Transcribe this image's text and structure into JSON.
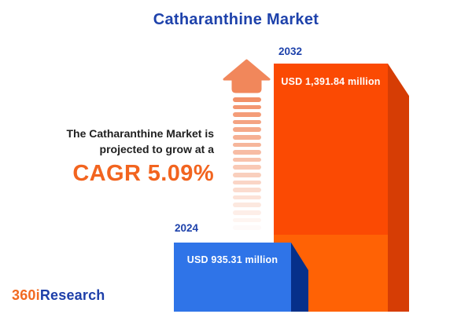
{
  "title": "Catharanthine Market",
  "growth_note": {
    "line1": "The Catharanthine Market is",
    "line2": "projected to grow at a",
    "cagr": "CAGR 5.09%"
  },
  "logo": {
    "part1": "360i",
    "part2": "Research"
  },
  "colors": {
    "title_blue": "#1E42AB",
    "accent_orange": "#F2641F",
    "bar_2032_front_top": "#FB4A03",
    "bar_2032_front_bottom": "#FF6205",
    "bar_2032_side": "#D63D05",
    "bar_2024_front": "#2F74E8",
    "bar_2024_side": "#06308A",
    "arrow_color": "#F1875B",
    "text_dark": "#1F1F1F",
    "logo_orange": "#F26A21",
    "logo_blue": "#1E3FA9",
    "label_white": "#FFFFFF"
  },
  "chart_data": {
    "type": "bar",
    "title": "Catharanthine Market",
    "categories": [
      "2024",
      "2032"
    ],
    "values": [
      935.31,
      1391.84
    ],
    "value_labels": [
      "USD 935.31 million",
      "USD 1,391.84 million"
    ],
    "unit": "USD million",
    "cagr_percent": 5.09,
    "orientation": "vertical",
    "style": "3d-bars, values rendered inside bars, year labels above bars, no axes or gridlines"
  }
}
